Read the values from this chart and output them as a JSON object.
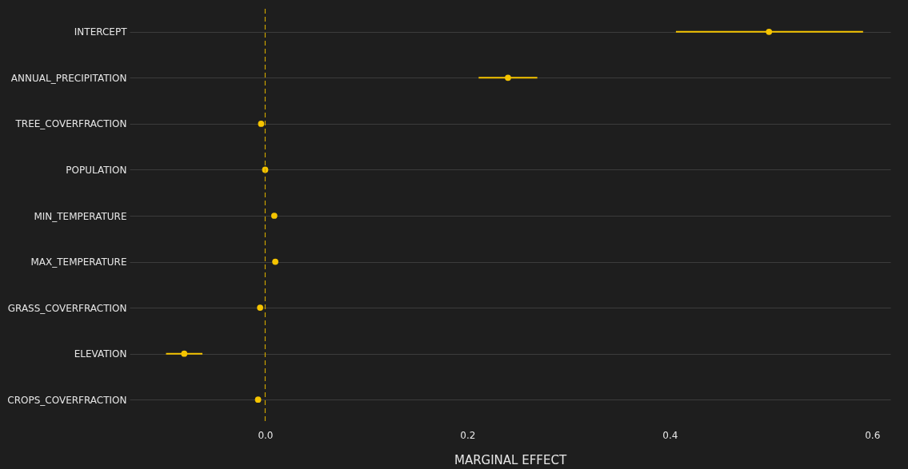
{
  "chart_data": {
    "type": "scatter",
    "orientation": "horizontal",
    "xlabel": "MARGINAL EFFECT",
    "categories": [
      "INTERCEPT",
      "ANNUAL_PRECIPITATION",
      "TREE_COVERFRACTION",
      "POPULATION",
      "MIN_TEMPERATURE",
      "MAX_TEMPERATURE",
      "GRASS_COVERFRACTION",
      "ELEVATION",
      "CROPS_COVERFRACTION"
    ],
    "series": [
      {
        "color": "#f5c400",
        "values": [
          0.498,
          0.24,
          -0.004,
          0.0,
          0.009,
          0.01,
          -0.005,
          -0.08,
          -0.007
        ],
        "errors": [
          [
            0.406,
            0.591
          ],
          [
            0.211,
            0.269
          ],
          null,
          null,
          null,
          null,
          null,
          [
            -0.098,
            -0.062
          ],
          null
        ]
      }
    ],
    "xlim": [
      -0.134,
      0.618
    ],
    "xticks": [
      {
        "value": 0,
        "label": "0.0"
      },
      0.2,
      0.4,
      0.6
    ],
    "ref_lines": [
      {
        "axis": "x",
        "value": 0,
        "color": "#c9a000",
        "line_style": "dashed"
      }
    ],
    "grid": "y",
    "marker": "circle"
  }
}
